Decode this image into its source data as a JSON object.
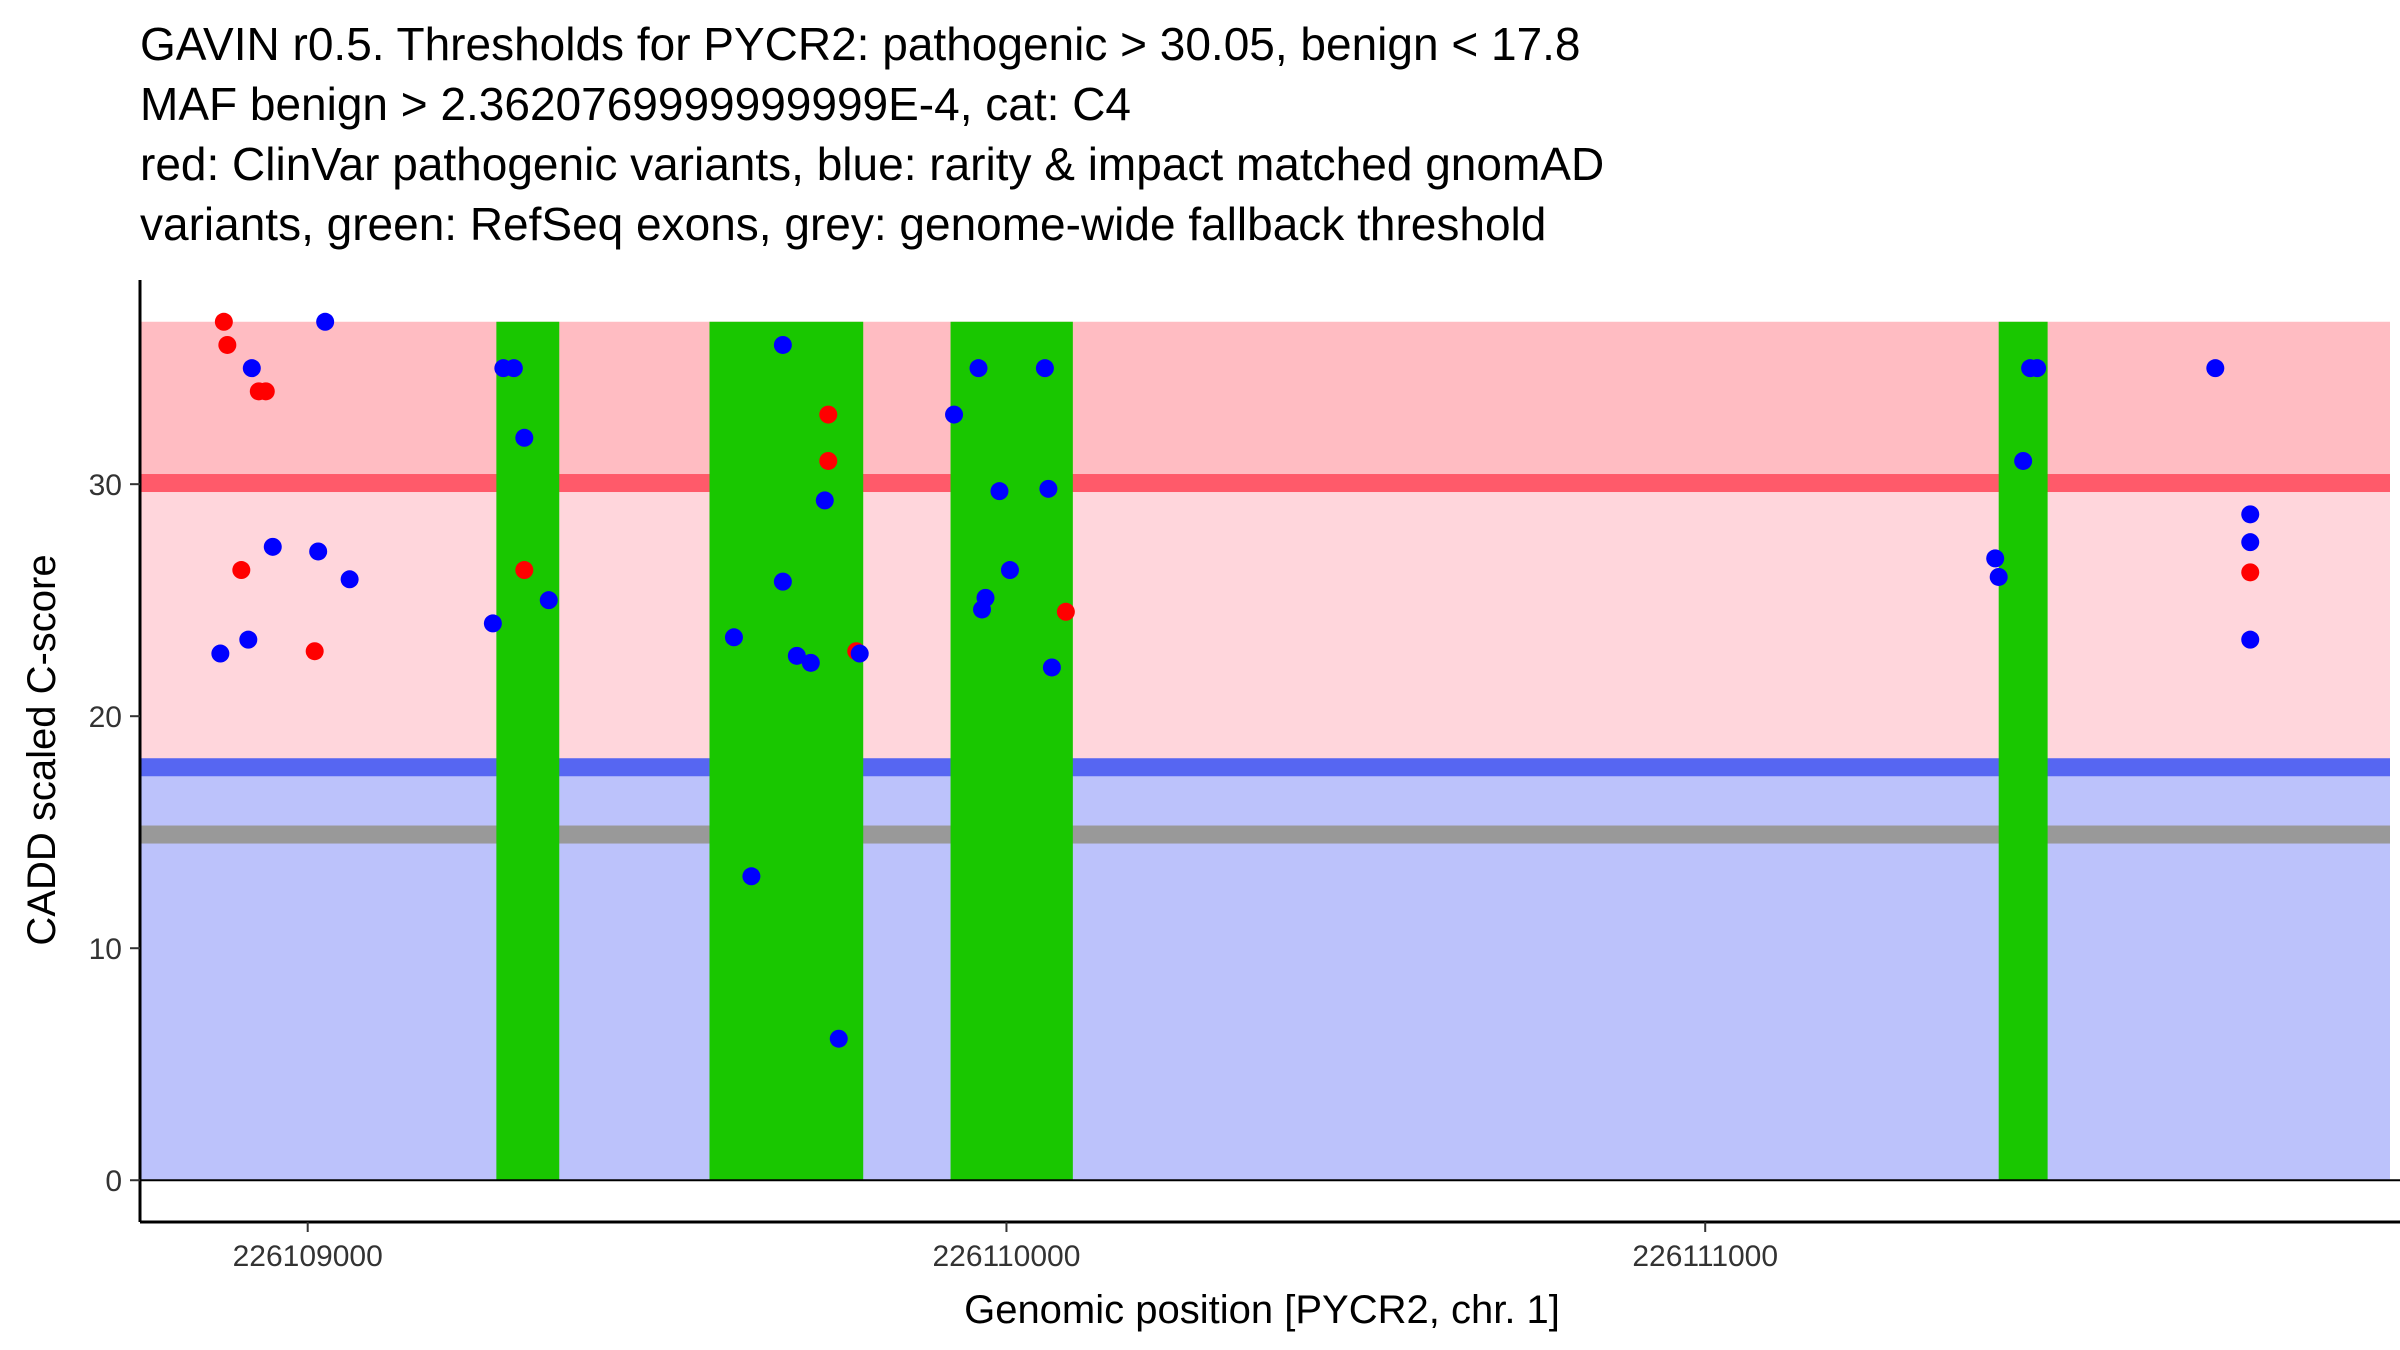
{
  "chart_data": {
    "type": "scatter",
    "title": {
      "lines": [
        "GAVIN r0.5. Thresholds for PYCR2: pathogenic > 30.05, benign < 17.8",
        "MAF benign > 2.3620769999999999E-4, cat: C4",
        "red: ClinVar pathogenic variants, blue: rarity & impact matched gnomAD",
        "variants, green: RefSeq exons, grey: genome-wide fallback threshold"
      ]
    },
    "xlabel": "Genomic position [PYCR2, chr. 1]",
    "ylabel": "CADD scaled C-score",
    "xlim": [
      226108760,
      226111980
    ],
    "ylim": [
      -1.8,
      38.8
    ],
    "xticks": [
      {
        "value": 226109000,
        "label": "226109000"
      },
      {
        "value": 226110000,
        "label": "226110000"
      },
      {
        "value": 226111000,
        "label": "226111000"
      }
    ],
    "yticks": [
      {
        "value": 0,
        "label": "0"
      },
      {
        "value": 10,
        "label": "10"
      },
      {
        "value": 20,
        "label": "20"
      },
      {
        "value": 30,
        "label": "30"
      }
    ],
    "regions": {
      "pathogenic_band": {
        "from": 30.05,
        "to": 37,
        "color": "#ffbcc2"
      },
      "middle_band": {
        "from": 17.8,
        "to": 30.05,
        "color": "#ffd6dc"
      },
      "benign_band": {
        "from": 0,
        "to": 17.8,
        "color": "#bcc2fb"
      }
    },
    "threshold_lines": [
      {
        "name": "pathogenic",
        "value": 30.05,
        "color": "#ff5a6a"
      },
      {
        "name": "benign",
        "value": 17.8,
        "color": "#5666f2"
      },
      {
        "name": "genome-wide fallback",
        "value": 14.9,
        "color": "#999999"
      }
    ],
    "exons": {
      "color": "#19c700",
      "ranges": [
        [
          226109270,
          226109360
        ],
        [
          226109575,
          226109795
        ],
        [
          226109920,
          226110095
        ],
        [
          226111420,
          226111490
        ]
      ]
    },
    "series": [
      {
        "name": "ClinVar pathogenic variants",
        "color": "#ff0000",
        "points": [
          [
            226108880,
            37
          ],
          [
            226108885,
            36
          ],
          [
            226108930,
            34
          ],
          [
            226108940,
            34
          ],
          [
            226108905,
            26.3
          ],
          [
            226109010,
            22.8
          ],
          [
            226109310,
            26.3
          ],
          [
            226109745,
            33
          ],
          [
            226109745,
            31
          ],
          [
            226109785,
            22.8
          ],
          [
            226110085,
            24.5
          ],
          [
            226111780,
            26.2
          ]
        ]
      },
      {
        "name": "gnomAD matched variants",
        "color": "#0000ff",
        "points": [
          [
            226108920,
            35
          ],
          [
            226109025,
            37
          ],
          [
            226108875,
            22.7
          ],
          [
            226108915,
            23.3
          ],
          [
            226108950,
            27.3
          ],
          [
            226109015,
            27.1
          ],
          [
            226109060,
            25.9
          ],
          [
            226109280,
            35
          ],
          [
            226109295,
            35
          ],
          [
            226109310,
            32
          ],
          [
            226109265,
            24
          ],
          [
            226109345,
            25
          ],
          [
            226109680,
            36
          ],
          [
            226109610,
            23.4
          ],
          [
            226109635,
            13.1
          ],
          [
            226109680,
            25.8
          ],
          [
            226109700,
            22.6
          ],
          [
            226109720,
            22.3
          ],
          [
            226109740,
            29.3
          ],
          [
            226109760,
            6.1
          ],
          [
            226109790,
            22.7
          ],
          [
            226109925,
            33
          ],
          [
            226109960,
            35
          ],
          [
            226110055,
            35
          ],
          [
            226109965,
            24.6
          ],
          [
            226109970,
            25.1
          ],
          [
            226109990,
            29.7
          ],
          [
            226110005,
            26.3
          ],
          [
            226110060,
            29.8
          ],
          [
            226110065,
            22.1
          ],
          [
            226111415,
            26.8
          ],
          [
            226111420,
            26
          ],
          [
            226111455,
            31
          ],
          [
            226111465,
            35
          ],
          [
            226111475,
            35
          ],
          [
            226111730,
            35
          ],
          [
            226111780,
            28.7
          ],
          [
            226111780,
            27.5
          ],
          [
            226111780,
            23.3
          ]
        ]
      }
    ]
  }
}
